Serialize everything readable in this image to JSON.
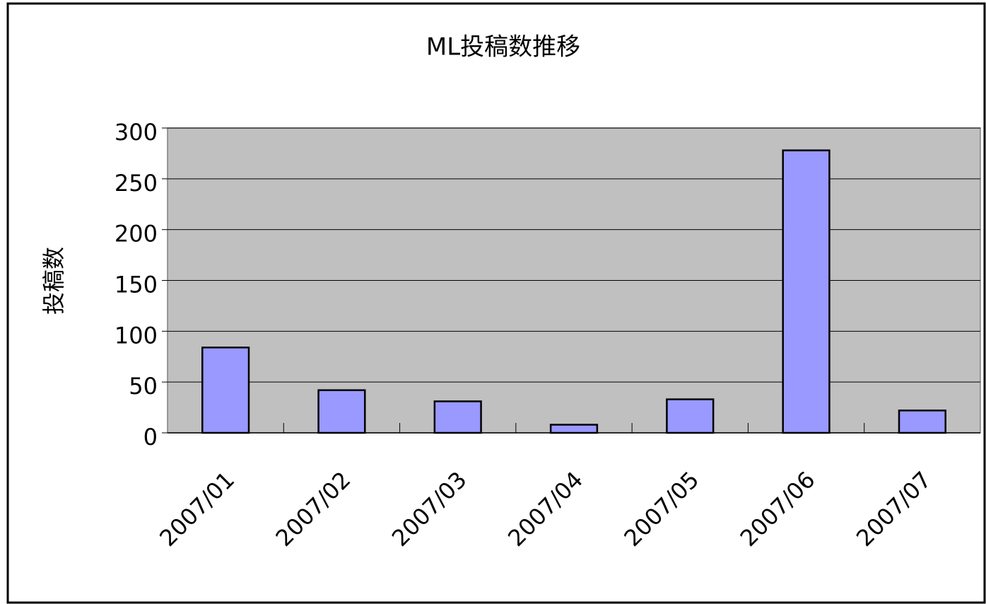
{
  "chart_data": {
    "type": "bar",
    "title": "ML投稿数推移",
    "y_label": "投稿数",
    "categories": [
      "2007/01",
      "2007/02",
      "2007/03",
      "2007/04",
      "2007/05",
      "2007/06",
      "2007/07"
    ],
    "values": [
      84,
      42,
      31,
      8,
      33,
      278,
      22
    ],
    "color": "#9999ff",
    "ylim": [
      0,
      300
    ],
    "yticks": [
      0,
      50,
      100,
      150,
      200,
      250,
      300
    ],
    "grid": true
  }
}
